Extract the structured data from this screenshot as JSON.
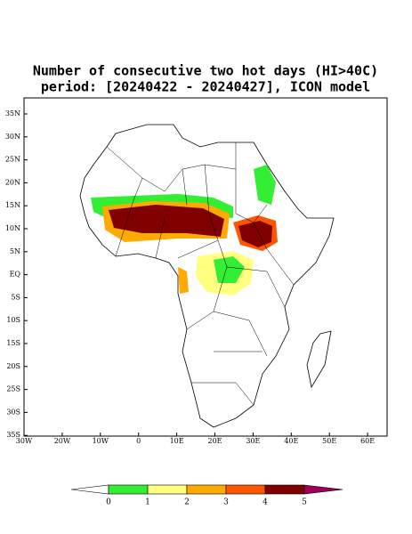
{
  "title": "Number of consecutive two hot days (HI>40C)",
  "subtitle": "period: [20240422 - 20240427], ICON model",
  "lat_labels": [
    "35N",
    "30N",
    "25N",
    "20N",
    "15N",
    "10N",
    "5N",
    "EQ",
    "5S",
    "10S",
    "15S",
    "20S",
    "25S",
    "30S",
    "35S"
  ],
  "lon_labels": [
    "30W",
    "20W",
    "10W",
    "0",
    "10E",
    "20E",
    "30E",
    "40E",
    "50E",
    "60E"
  ],
  "colorbar": {
    "ticks": [
      0,
      1,
      2,
      3,
      4,
      5
    ],
    "colors": [
      "#ffffff",
      "#33ee33",
      "#ffff80",
      "#ffaa00",
      "#ff5500",
      "#800000",
      "#a0005a"
    ]
  }
}
